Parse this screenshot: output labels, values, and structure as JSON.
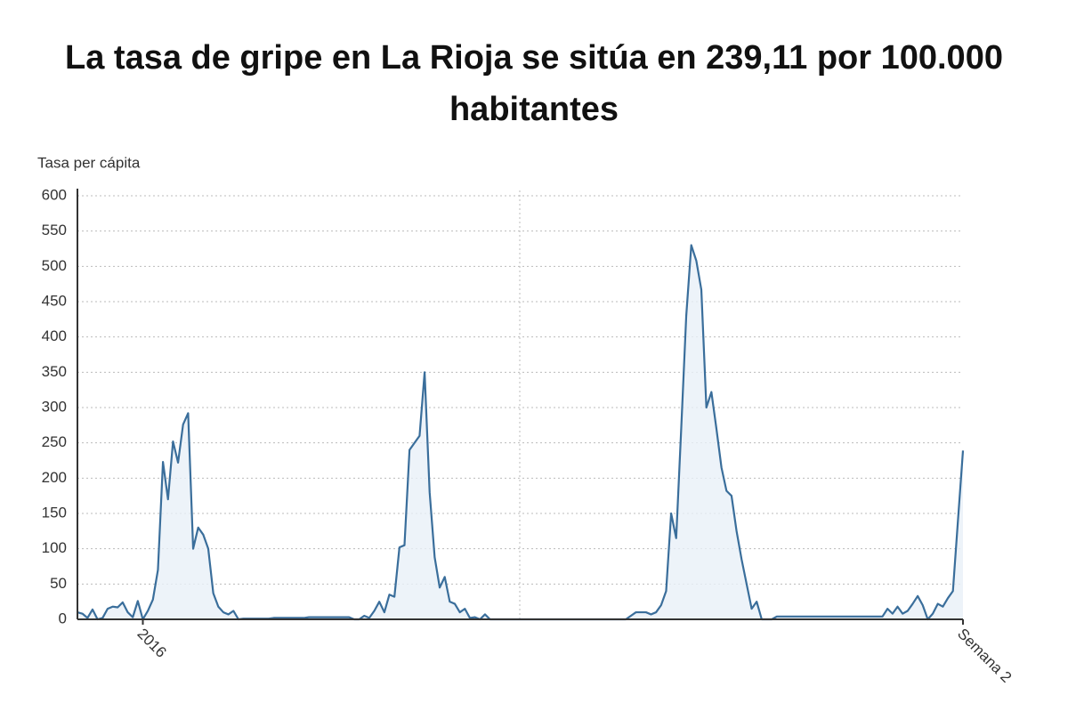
{
  "chart_data": {
    "type": "line",
    "title": "La tasa de gripe en La Rioja se sitúa en 239,11 por 100.000 habitantes",
    "y_label": "Tasa per cápita",
    "categories": [
      null,
      null,
      null,
      null,
      null,
      null,
      null,
      null,
      null,
      null,
      null,
      null,
      null,
      "2016",
      null,
      null,
      null,
      null,
      null,
      null,
      null,
      null,
      null,
      null,
      null,
      null,
      null,
      null,
      null,
      null,
      null,
      null,
      null,
      null,
      null,
      null,
      null,
      null,
      null,
      null,
      null,
      null,
      null,
      null,
      null,
      null,
      null,
      null,
      null,
      null,
      null,
      null,
      null,
      null,
      null,
      null,
      null,
      null,
      null,
      null,
      null,
      null,
      null,
      null,
      null,
      null,
      null,
      null,
      null,
      null,
      null,
      null,
      null,
      null,
      null,
      null,
      null,
      null,
      null,
      null,
      null,
      null,
      null,
      null,
      null,
      null,
      null,
      null,
      null,
      null,
      null,
      null,
      null,
      null,
      null,
      null,
      null,
      null,
      null,
      null,
      null,
      null,
      null,
      null,
      null,
      null,
      null,
      null,
      null,
      null,
      null,
      null,
      null,
      null,
      null,
      null,
      null,
      null,
      null,
      null,
      null,
      null,
      null,
      null,
      null,
      null,
      null,
      null,
      null,
      null,
      null,
      null,
      null,
      null,
      null,
      null,
      null,
      null,
      null,
      null,
      null,
      null,
      null,
      null,
      null,
      null,
      null,
      null,
      null,
      null,
      null,
      null,
      null,
      null,
      null,
      null,
      null,
      null,
      null,
      null,
      null,
      null,
      null,
      null,
      null,
      null,
      null,
      null,
      null,
      null,
      null,
      null,
      null,
      null,
      null,
      null,
      "Semana 2"
    ],
    "series": [
      {
        "name": "Tasa per cápita",
        "color": "#3a6e9b",
        "values": [
          10,
          8,
          2,
          14,
          0,
          2,
          15,
          18,
          17,
          24,
          10,
          3,
          26,
          0,
          12,
          28,
          70,
          223,
          170,
          252,
          222,
          276,
          292,
          100,
          130,
          120,
          100,
          37,
          18,
          10,
          7,
          12,
          0,
          1,
          1,
          1,
          1,
          1,
          1,
          2,
          2,
          2,
          2,
          2,
          2,
          2,
          3,
          3,
          3,
          3,
          3,
          3,
          3,
          3,
          3,
          0,
          0,
          5,
          2,
          12,
          25,
          10,
          35,
          32,
          102,
          105,
          240,
          250,
          260,
          350,
          180,
          88,
          45,
          60,
          25,
          22,
          10,
          15,
          2,
          3,
          0,
          7,
          0,
          0,
          0,
          0,
          0,
          0,
          0,
          0,
          0,
          0,
          0,
          0,
          0,
          0,
          0,
          0,
          0,
          0,
          0,
          0,
          0,
          0,
          0,
          0,
          0,
          0,
          0,
          0,
          5,
          10,
          10,
          10,
          7,
          10,
          20,
          40,
          150,
          115,
          270,
          430,
          530,
          508,
          467,
          300,
          322,
          270,
          215,
          182,
          175,
          125,
          85,
          50,
          15,
          25,
          0,
          0,
          0,
          4,
          4,
          4,
          4,
          4,
          4,
          4,
          4,
          4,
          4,
          4,
          4,
          4,
          4,
          4,
          4,
          4,
          4,
          4,
          4,
          4,
          4,
          15,
          8,
          18,
          8,
          12,
          22,
          33,
          20,
          0,
          8,
          22,
          18,
          30,
          40,
          140,
          239.11
        ]
      }
    ],
    "ylim": [
      0,
      600
    ],
    "yticks": [
      0,
      50,
      100,
      150,
      200,
      250,
      300,
      350,
      400,
      450,
      500,
      550,
      600
    ],
    "grid": true
  }
}
